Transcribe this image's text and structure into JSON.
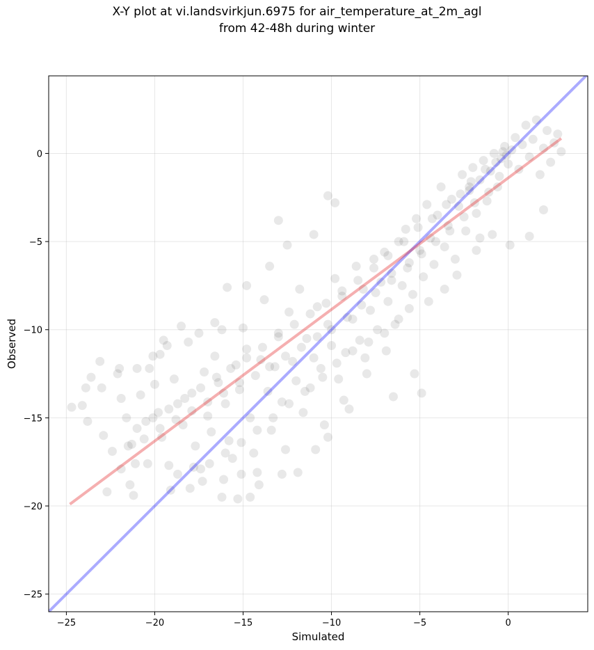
{
  "chart_data": {
    "type": "scatter",
    "title": "X-Y plot at vi.landsvirkjun.6975 for air_temperature_at_2m_agl",
    "subtitle": "from 42-48h during winter",
    "xlabel": "Simulated",
    "ylabel": "Observed",
    "xlim": [
      -26.0,
      4.5
    ],
    "ylim": [
      -26.0,
      4.4
    ],
    "xticks": [
      -25,
      -20,
      -15,
      -10,
      -5,
      0
    ],
    "yticks": [
      -25,
      -20,
      -15,
      -10,
      -5,
      0
    ],
    "grid": true,
    "point_color": "#000000",
    "point_alpha": 0.09,
    "identity_line": {
      "color": "#0000ff",
      "alpha": 0.33,
      "x": [
        -26.0,
        4.5
      ],
      "y": [
        -26.0,
        4.5
      ]
    },
    "regression_line": {
      "color": "#e31a1c",
      "alpha": 0.35,
      "x": [
        -24.8,
        3.0
      ],
      "y": [
        -19.9,
        0.85
      ]
    },
    "series": [
      {
        "points": [
          [
            -24.7,
            -14.4
          ],
          [
            -24.1,
            -14.3
          ],
          [
            -23.9,
            -13.3
          ],
          [
            -23.6,
            -12.7
          ],
          [
            -23.1,
            -11.8
          ],
          [
            -23.8,
            -15.2
          ],
          [
            -22.9,
            -16.0
          ],
          [
            -22.4,
            -16.9
          ],
          [
            -22.0,
            -12.2
          ],
          [
            -21.9,
            -13.9
          ],
          [
            -21.6,
            -15.0
          ],
          [
            -21.3,
            -16.5
          ],
          [
            -21.1,
            -17.6
          ],
          [
            -21.4,
            -18.8
          ],
          [
            -21.2,
            -19.4
          ],
          [
            -20.8,
            -13.7
          ],
          [
            -20.5,
            -15.2
          ],
          [
            -20.3,
            -12.2
          ],
          [
            -20.0,
            -13.1
          ],
          [
            -19.7,
            -11.4
          ],
          [
            -19.5,
            -10.6
          ],
          [
            -19.8,
            -14.7
          ],
          [
            -19.6,
            -16.1
          ],
          [
            -19.2,
            -17.7
          ],
          [
            -18.9,
            -12.8
          ],
          [
            -18.7,
            -14.2
          ],
          [
            -18.4,
            -15.4
          ],
          [
            -18.1,
            -10.7
          ],
          [
            -17.9,
            -13.6
          ],
          [
            -17.7,
            -16.6
          ],
          [
            -17.4,
            -17.9
          ],
          [
            -17.2,
            -12.4
          ],
          [
            -17.0,
            -14.9
          ],
          [
            -16.8,
            -15.8
          ],
          [
            -16.6,
            -11.5
          ],
          [
            -16.4,
            -13.0
          ],
          [
            -16.2,
            -10.0
          ],
          [
            -16.0,
            -14.2
          ],
          [
            -15.8,
            -16.3
          ],
          [
            -15.6,
            -17.3
          ],
          [
            -15.4,
            -12.0
          ],
          [
            -15.2,
            -13.4
          ],
          [
            -15.0,
            -9.9
          ],
          [
            -14.8,
            -11.1
          ],
          [
            -14.6,
            -15.0
          ],
          [
            -14.4,
            -17.0
          ],
          [
            -14.2,
            -18.1
          ],
          [
            -14.0,
            -11.7
          ],
          [
            -13.8,
            -8.3
          ],
          [
            -13.6,
            -13.5
          ],
          [
            -13.4,
            -15.7
          ],
          [
            -13.2,
            -12.1
          ],
          [
            -13.0,
            -10.2
          ],
          [
            -12.8,
            -14.1
          ],
          [
            -12.6,
            -16.8
          ],
          [
            -12.4,
            -9.0
          ],
          [
            -12.2,
            -11.8
          ],
          [
            -12.0,
            -12.9
          ],
          [
            -11.8,
            -7.7
          ],
          [
            -11.6,
            -14.7
          ],
          [
            -11.4,
            -10.5
          ],
          [
            -11.2,
            -13.3
          ],
          [
            -11.0,
            -11.6
          ],
          [
            -10.8,
            -8.7
          ],
          [
            -10.6,
            -12.2
          ],
          [
            -10.4,
            -15.4
          ],
          [
            -10.2,
            -9.7
          ],
          [
            -10.0,
            -10.9
          ],
          [
            -9.8,
            -7.1
          ],
          [
            -9.6,
            -12.8
          ],
          [
            -9.4,
            -8.1
          ],
          [
            -9.2,
            -11.3
          ],
          [
            -9.0,
            -14.5
          ],
          [
            -8.8,
            -9.4
          ],
          [
            -8.6,
            -6.4
          ],
          [
            -8.4,
            -10.6
          ],
          [
            -8.2,
            -7.7
          ],
          [
            -8.0,
            -12.5
          ],
          [
            -7.8,
            -8.9
          ],
          [
            -7.6,
            -6.0
          ],
          [
            -7.4,
            -10.0
          ],
          [
            -7.2,
            -7.3
          ],
          [
            -7.0,
            -5.6
          ],
          [
            -6.8,
            -8.4
          ],
          [
            -6.6,
            -6.8
          ],
          [
            -6.4,
            -9.7
          ],
          [
            -6.2,
            -5.0
          ],
          [
            -6.0,
            -7.5
          ],
          [
            -5.8,
            -4.3
          ],
          [
            -5.6,
            -6.2
          ],
          [
            -5.4,
            -8.0
          ],
          [
            -5.2,
            -3.7
          ],
          [
            -5.0,
            -5.5
          ],
          [
            -4.8,
            -7.0
          ],
          [
            -4.6,
            -2.9
          ],
          [
            -4.4,
            -4.8
          ],
          [
            -4.2,
            -6.3
          ],
          [
            -4.0,
            -3.5
          ],
          [
            -3.8,
            -1.9
          ],
          [
            -3.6,
            -5.3
          ],
          [
            -3.4,
            -4.1
          ],
          [
            -3.2,
            -2.6
          ],
          [
            -3.0,
            -6.0
          ],
          [
            -2.8,
            -3.0
          ],
          [
            -2.6,
            -1.2
          ],
          [
            -2.4,
            -4.4
          ],
          [
            -2.2,
            -2.1
          ],
          [
            -2.0,
            -0.8
          ],
          [
            -1.8,
            -3.4
          ],
          [
            -1.6,
            -1.5
          ],
          [
            -1.4,
            -0.4
          ],
          [
            -1.2,
            -2.7
          ],
          [
            -1.0,
            -1.0
          ],
          [
            -0.8,
            0.0
          ],
          [
            -0.6,
            -1.9
          ],
          [
            -0.4,
            -0.3
          ],
          [
            -0.2,
            0.4
          ],
          [
            0.0,
            -0.6
          ],
          [
            0.2,
            0.2
          ],
          [
            0.4,
            0.9
          ],
          [
            0.6,
            -0.9
          ],
          [
            0.8,
            0.5
          ],
          [
            1.0,
            1.6
          ],
          [
            1.2,
            -0.2
          ],
          [
            1.4,
            0.8
          ],
          [
            1.6,
            1.9
          ],
          [
            1.8,
            -1.2
          ],
          [
            2.0,
            0.3
          ],
          [
            2.2,
            1.3
          ],
          [
            2.4,
            -0.5
          ],
          [
            2.6,
            0.6
          ],
          [
            2.8,
            1.1
          ],
          [
            3.0,
            0.1
          ],
          [
            -2.2,
            -1.9
          ],
          [
            -0.1,
            -0.1
          ],
          [
            -1.8,
            -5.5
          ],
          [
            -0.9,
            -4.6
          ],
          [
            0.1,
            -5.2
          ],
          [
            1.2,
            -4.7
          ],
          [
            2.0,
            -3.2
          ],
          [
            -6.5,
            -13.8
          ],
          [
            -5.3,
            -12.5
          ],
          [
            -4.9,
            -13.6
          ],
          [
            -6.9,
            -11.2
          ],
          [
            -8.1,
            -11.6
          ],
          [
            -9.3,
            -14.0
          ],
          [
            -10.2,
            -16.1
          ],
          [
            -10.9,
            -16.8
          ],
          [
            -11.9,
            -18.1
          ],
          [
            -12.8,
            -18.2
          ],
          [
            -14.1,
            -18.8
          ],
          [
            -15.3,
            -19.6
          ],
          [
            -15.1,
            -18.2
          ],
          [
            -14.6,
            -19.5
          ],
          [
            -16.2,
            -19.5
          ],
          [
            -16.1,
            -18.5
          ],
          [
            -17.3,
            -18.6
          ],
          [
            -18.0,
            -19.0
          ],
          [
            -19.1,
            -19.1
          ],
          [
            -20.4,
            -17.6
          ],
          [
            -22.7,
            -19.2
          ],
          [
            -21.9,
            -17.9
          ],
          [
            -13.0,
            -3.8
          ],
          [
            -10.2,
            -2.4
          ],
          [
            -9.8,
            -2.8
          ],
          [
            -11.0,
            -4.6
          ],
          [
            -12.5,
            -5.2
          ],
          [
            -13.5,
            -6.4
          ],
          [
            -14.8,
            -7.5
          ],
          [
            -15.9,
            -7.6
          ],
          [
            -16.6,
            -9.6
          ],
          [
            -17.5,
            -10.2
          ],
          [
            -18.5,
            -9.8
          ],
          [
            -19.3,
            -10.9
          ],
          [
            -20.1,
            -11.5
          ],
          [
            -21.0,
            -12.2
          ],
          [
            -22.1,
            -12.5
          ],
          [
            -23.0,
            -13.3
          ],
          [
            -1.6,
            -4.8
          ],
          [
            -2.9,
            -6.9
          ],
          [
            -3.6,
            -7.7
          ],
          [
            -4.5,
            -8.4
          ],
          [
            -5.6,
            -8.8
          ],
          [
            -6.2,
            -9.4
          ],
          [
            -7.0,
            -10.2
          ],
          [
            -7.9,
            -10.7
          ],
          [
            -8.8,
            -11.2
          ],
          [
            -9.7,
            -11.9
          ],
          [
            -10.5,
            -12.7
          ],
          [
            -11.5,
            -13.5
          ],
          [
            -12.4,
            -14.2
          ],
          [
            -13.3,
            -15.0
          ],
          [
            -14.2,
            -15.7
          ],
          [
            -15.1,
            -16.4
          ],
          [
            -16.0,
            -17.0
          ],
          [
            -16.9,
            -17.6
          ],
          [
            -17.8,
            -17.8
          ],
          [
            -18.7,
            -18.2
          ],
          [
            -0.5,
            -1.3
          ],
          [
            -1.1,
            -2.2
          ],
          [
            -1.9,
            -2.8
          ],
          [
            -2.5,
            -3.6
          ],
          [
            -3.3,
            -4.4
          ],
          [
            -4.1,
            -5.0
          ],
          [
            -4.9,
            -5.7
          ],
          [
            -5.7,
            -6.5
          ],
          [
            -6.6,
            -7.2
          ],
          [
            -7.5,
            -7.9
          ],
          [
            -8.3,
            -8.6
          ],
          [
            -9.1,
            -9.3
          ],
          [
            -10.0,
            -10.0
          ],
          [
            -10.8,
            -10.4
          ],
          [
            -11.7,
            -11.0
          ],
          [
            -12.6,
            -11.5
          ],
          [
            -13.5,
            -12.1
          ],
          [
            -14.3,
            -12.6
          ],
          [
            -15.2,
            -13.0
          ],
          [
            -16.1,
            -13.6
          ],
          [
            -17.0,
            -14.1
          ],
          [
            -17.9,
            -14.6
          ],
          [
            -18.8,
            -15.1
          ],
          [
            -19.7,
            -15.6
          ],
          [
            -20.6,
            -16.2
          ],
          [
            -21.5,
            -16.6
          ],
          [
            -0.3,
            0.1
          ],
          [
            -0.7,
            -0.5
          ],
          [
            -1.3,
            -0.9
          ],
          [
            -2.1,
            -1.6
          ],
          [
            -2.7,
            -2.3
          ],
          [
            -3.5,
            -2.9
          ],
          [
            -4.3,
            -3.7
          ],
          [
            -5.1,
            -4.2
          ],
          [
            -5.9,
            -5.0
          ],
          [
            -6.8,
            -5.8
          ],
          [
            -7.6,
            -6.5
          ],
          [
            -8.5,
            -7.2
          ],
          [
            -9.4,
            -7.8
          ],
          [
            -10.3,
            -8.5
          ],
          [
            -11.2,
            -9.1
          ],
          [
            -12.1,
            -9.7
          ],
          [
            -13.0,
            -10.4
          ],
          [
            -13.9,
            -11.0
          ],
          [
            -14.8,
            -11.6
          ],
          [
            -15.7,
            -12.2
          ],
          [
            -16.5,
            -12.7
          ],
          [
            -17.4,
            -13.3
          ],
          [
            -18.3,
            -13.9
          ],
          [
            -19.2,
            -14.5
          ],
          [
            -20.1,
            -15.0
          ],
          [
            -21.0,
            -15.6
          ]
        ]
      }
    ]
  }
}
